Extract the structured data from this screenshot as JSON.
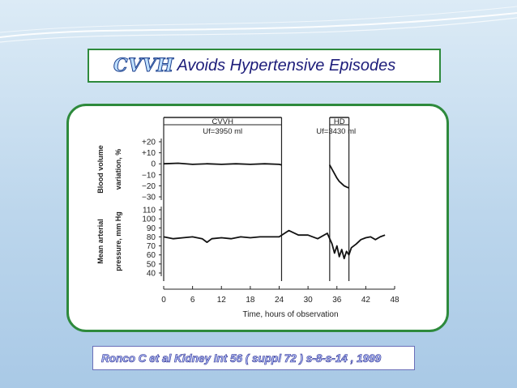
{
  "slide": {
    "title_strong": "CVVH",
    "title_rest": "Avoids Hypertensive Episodes",
    "reference": "Ronco  C  et al Kidney Int 56 ( suppl 72 ) s-8-s-14 , 1999"
  },
  "chart_data": {
    "type": "line",
    "xlabel": "Time, hours of observation",
    "x_ticks": [
      0,
      6,
      12,
      18,
      24,
      30,
      36,
      42,
      48
    ],
    "xlim": [
      0,
      48
    ],
    "phases": [
      {
        "name": "CVVH",
        "sub": "Uf=3950 ml",
        "start": 0,
        "end": 24.5
      },
      {
        "name": "HD",
        "sub": "Uf=3430 ml",
        "start": 34.5,
        "end": 38.5
      }
    ],
    "panels": [
      {
        "ylabel_lines": [
          "Blood volume",
          "variation, %"
        ],
        "y_ticks": [
          "+20",
          "+10",
          "0",
          "−10",
          "−20",
          "−30"
        ],
        "ylim": [
          -30,
          20
        ],
        "series": [
          {
            "x": [
              0,
              3,
              6,
              9,
              12,
              15,
              18,
              21,
              24,
              24.5
            ],
            "y": [
              0,
              0.5,
              -0.5,
              0,
              -0.5,
              0,
              -0.5,
              0,
              -0.5,
              -1
            ]
          },
          {
            "x": [
              34.5,
              35,
              35.5,
              36,
              36.5,
              37,
              37.5,
              38,
              38.5
            ],
            "y": [
              -1,
              -5,
              -9,
              -13,
              -16,
              -18,
              -20,
              -21,
              -22
            ]
          }
        ]
      },
      {
        "ylabel_lines": [
          "Mean arterial",
          "pressure, mm Hg"
        ],
        "y_ticks": [
          "110",
          "100",
          "90",
          "80",
          "70",
          "60",
          "50",
          "40"
        ],
        "ylim": [
          40,
          110
        ],
        "series": [
          {
            "x": [
              0,
              2,
              4,
              6,
              8,
              9,
              10,
              12,
              14,
              16,
              18,
              20,
              22,
              24,
              26,
              28,
              30,
              32,
              34,
              35,
              35.5,
              36,
              36.5,
              37,
              37.5,
              38,
              38.5,
              39,
              40,
              41,
              42,
              43,
              44,
              45,
              46
            ],
            "y": [
              80,
              78,
              79,
              80,
              78,
              74,
              78,
              79,
              78,
              80,
              79,
              80,
              80,
              80,
              87,
              82,
              82,
              78,
              84,
              72,
              62,
              70,
              58,
              66,
              56,
              64,
              60,
              68,
              72,
              77,
              79,
              80,
              77,
              80,
              82
            ]
          }
        ]
      }
    ]
  }
}
